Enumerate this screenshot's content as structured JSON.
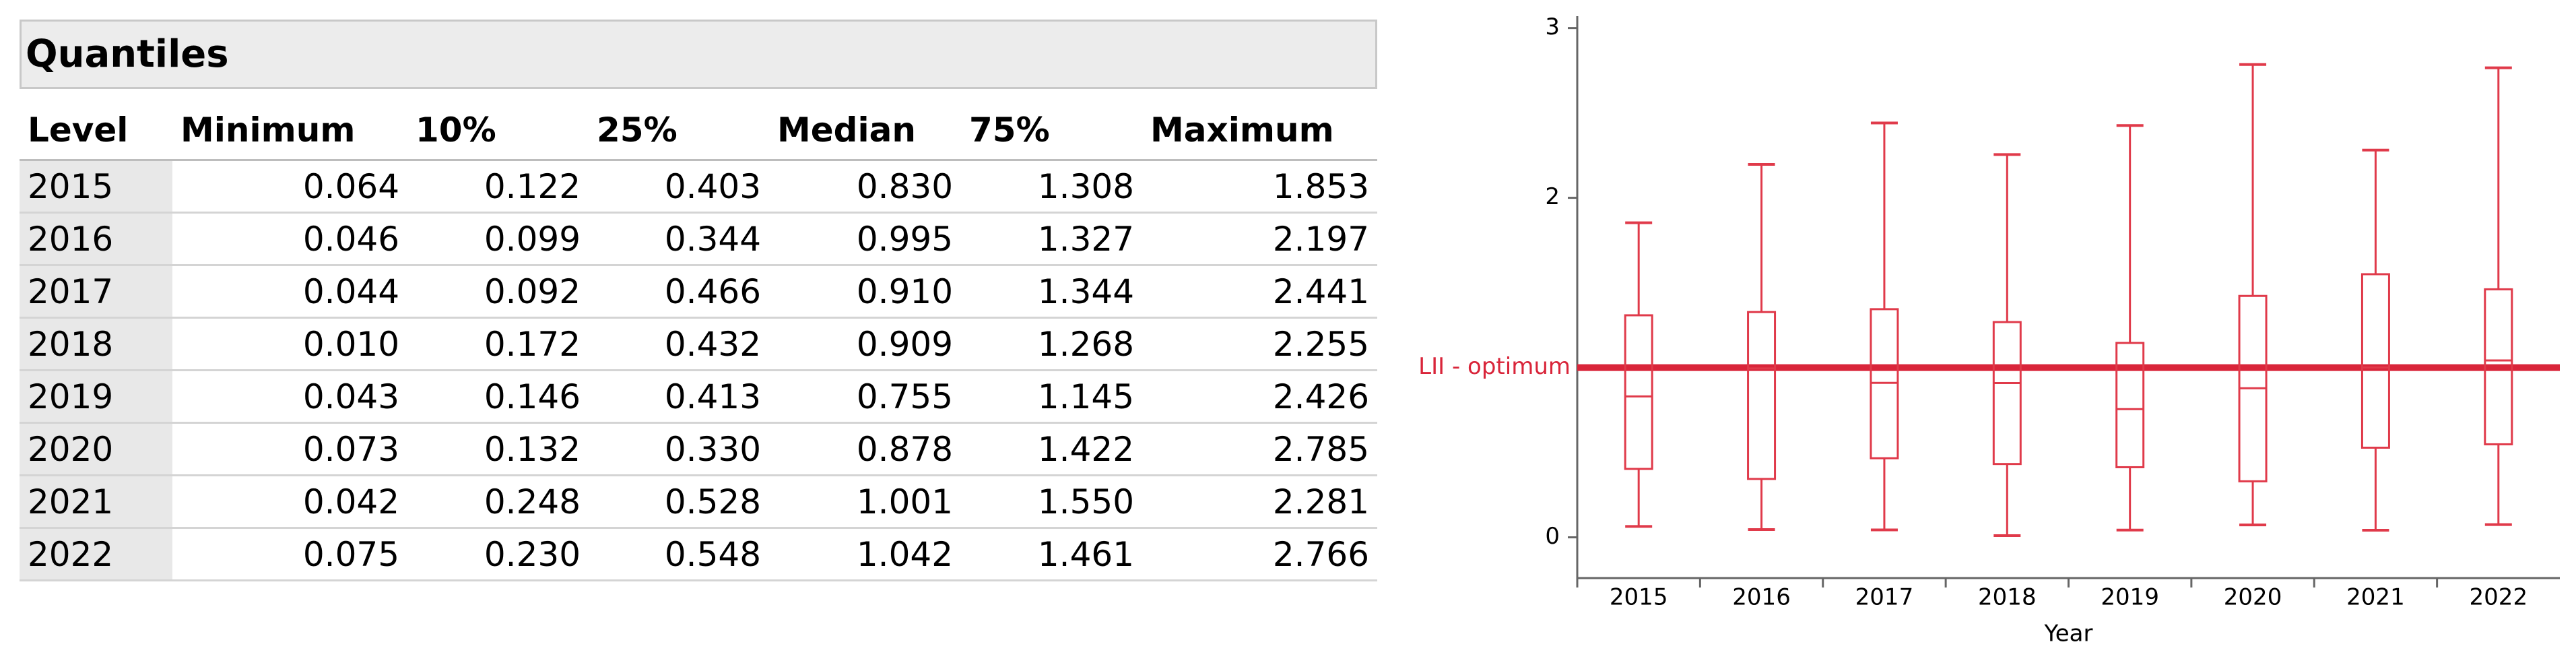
{
  "table": {
    "title": "Quantiles",
    "columns": [
      "Level",
      "Minimum",
      "10%",
      "25%",
      "Median",
      "75%",
      "Maximum"
    ],
    "rows": [
      [
        "2015",
        "0.064",
        "0.122",
        "0.403",
        "0.830",
        "1.308",
        "1.853"
      ],
      [
        "2016",
        "0.046",
        "0.099",
        "0.344",
        "0.995",
        "1.327",
        "2.197"
      ],
      [
        "2017",
        "0.044",
        "0.092",
        "0.466",
        "0.910",
        "1.344",
        "2.441"
      ],
      [
        "2018",
        "0.010",
        "0.172",
        "0.432",
        "0.909",
        "1.268",
        "2.255"
      ],
      [
        "2019",
        "0.043",
        "0.146",
        "0.413",
        "0.755",
        "1.145",
        "2.426"
      ],
      [
        "2020",
        "0.073",
        "0.132",
        "0.330",
        "0.878",
        "1.422",
        "2.785"
      ],
      [
        "2021",
        "0.042",
        "0.248",
        "0.528",
        "1.001",
        "1.550",
        "2.281"
      ],
      [
        "2022",
        "0.075",
        "0.230",
        "0.548",
        "1.042",
        "1.461",
        "2.766"
      ]
    ]
  },
  "chart_data": {
    "type": "box",
    "x_label": "Year",
    "categories": [
      "2015",
      "2016",
      "2017",
      "2018",
      "2019",
      "2020",
      "2021",
      "2022"
    ],
    "min": [
      0.064,
      0.046,
      0.044,
      0.01,
      0.043,
      0.073,
      0.042,
      0.075
    ],
    "q1": [
      0.403,
      0.344,
      0.466,
      0.432,
      0.413,
      0.33,
      0.528,
      0.548
    ],
    "median": [
      0.83,
      0.995,
      0.91,
      0.909,
      0.755,
      0.878,
      1.001,
      1.042
    ],
    "q3": [
      1.308,
      1.327,
      1.344,
      1.268,
      1.145,
      1.422,
      1.55,
      1.461
    ],
    "max": [
      1.853,
      2.197,
      2.441,
      2.255,
      2.426,
      2.785,
      2.281,
      2.766
    ],
    "color": "#e03a4a",
    "ylim": [
      -0.24,
      3.07
    ],
    "yticks": [
      0,
      2,
      3
    ],
    "reference_line": {
      "value": 1.0,
      "label": "LII - optimum",
      "color": "#d9253a"
    }
  }
}
